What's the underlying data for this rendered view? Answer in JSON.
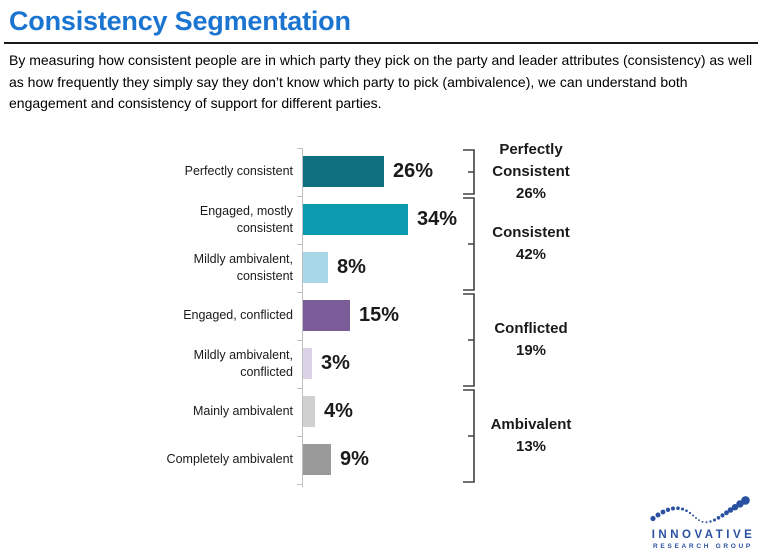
{
  "header": {
    "title": "Consistency Segmentation",
    "description": "By measuring how consistent people are in which party they pick on the party and leader attributes (consistency) as well as how frequently they simply say they don’t know which party to pick (ambivalence), we can understand both engagement and consistency of support for different parties."
  },
  "chart_data": {
    "type": "bar",
    "orientation": "horizontal",
    "title": "Consistency Segmentation",
    "categories": [
      "Perfectly consistent",
      "Engaged, mostly\nconsistent",
      "Mildly ambivalent,\nconsistent",
      "Engaged, conflicted",
      "Mildly ambivalent,\nconflicted",
      "Mainly ambivalent",
      "Completely ambivalent"
    ],
    "values": [
      26,
      34,
      8,
      15,
      3,
      4,
      9
    ],
    "value_labels": [
      "26%",
      "34%",
      "8%",
      "15%",
      "3%",
      "4%",
      "9%"
    ],
    "bar_colors": [
      "#0F6F7F",
      "#0C9AAE",
      "#A8D8E8",
      "#7A5C99",
      "#DCD2E8",
      "#D0D0D0",
      "#9A9A9A"
    ],
    "xlim": [
      0,
      40
    ],
    "gridlines": false,
    "legend": "none",
    "groups": [
      {
        "name": "Perfectly Consistent",
        "pct": "26%",
        "total": 26,
        "bars": [
          0
        ]
      },
      {
        "name": "Consistent",
        "pct": "42%",
        "total": 42,
        "bars": [
          1,
          2
        ]
      },
      {
        "name": "Conflicted",
        "pct": "19%",
        "total": 19,
        "bars": [
          3,
          4
        ]
      },
      {
        "name": "Ambivalent",
        "pct": "13%",
        "total": 13,
        "bars": [
          5,
          6
        ]
      }
    ]
  },
  "logo": {
    "name": "INNOVATIVE",
    "subtext": "RESEARCH GROUP"
  },
  "colors": {
    "title": "#1B75D0",
    "rule": "#1A1A1A",
    "axis": "#BFBFBF",
    "bracket": "#404040",
    "logo": "#2A51A1"
  }
}
